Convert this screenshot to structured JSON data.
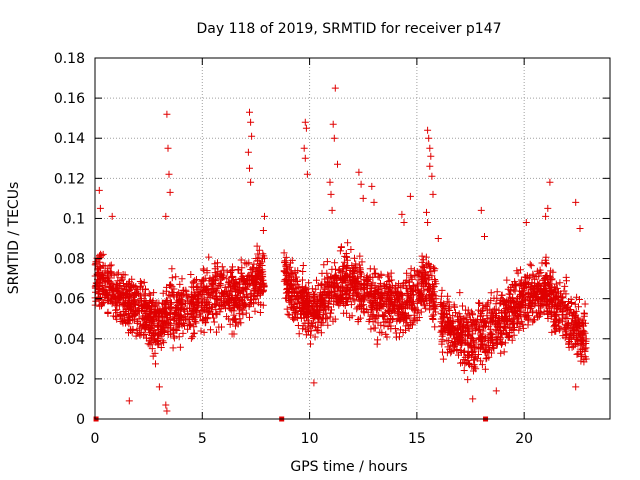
{
  "chart_data": {
    "type": "scatter",
    "title": "Day 118 of 2019, SRMTID for receiver p147",
    "xlabel": "GPS time / hours",
    "ylabel": "SRMTID / TECUs",
    "xlim": [
      0,
      24
    ],
    "ylim": [
      0,
      0.18
    ],
    "xticks": [
      0,
      5,
      10,
      15,
      20
    ],
    "xtick_labels": [
      "0",
      "5",
      "10",
      "15",
      "20"
    ],
    "yticks": [
      0,
      0.02,
      0.04,
      0.06,
      0.08,
      0.1,
      0.12,
      0.14,
      0.16,
      0.18
    ],
    "ytick_labels": [
      "0",
      "0.02",
      "0.04",
      "0.06",
      "0.08",
      "0.1",
      "0.12",
      "0.14",
      "0.16",
      "0.18"
    ],
    "grid": true,
    "marker": "+",
    "color": "#e00000",
    "gap_markers_x": [
      0.05,
      8.7,
      18.2
    ],
    "segments": [
      {
        "start": 0.0,
        "end": 7.9
      },
      {
        "start": 8.8,
        "end": 15.9
      },
      {
        "start": 16.1,
        "end": 22.9
      }
    ],
    "trend": [
      {
        "x": 0.0,
        "y": 0.068
      },
      {
        "x": 1.0,
        "y": 0.063
      },
      {
        "x": 2.0,
        "y": 0.055
      },
      {
        "x": 3.0,
        "y": 0.047
      },
      {
        "x": 3.4,
        "y": 0.055
      },
      {
        "x": 4.5,
        "y": 0.055
      },
      {
        "x": 5.5,
        "y": 0.063
      },
      {
        "x": 6.5,
        "y": 0.06
      },
      {
        "x": 7.5,
        "y": 0.07
      },
      {
        "x": 8.8,
        "y": 0.07
      },
      {
        "x": 10.0,
        "y": 0.053
      },
      {
        "x": 11.5,
        "y": 0.07
      },
      {
        "x": 13.0,
        "y": 0.06
      },
      {
        "x": 14.5,
        "y": 0.055
      },
      {
        "x": 15.5,
        "y": 0.07
      },
      {
        "x": 16.2,
        "y": 0.05
      },
      {
        "x": 17.5,
        "y": 0.038
      },
      {
        "x": 18.5,
        "y": 0.045
      },
      {
        "x": 19.5,
        "y": 0.055
      },
      {
        "x": 21.0,
        "y": 0.065
      },
      {
        "x": 22.0,
        "y": 0.05
      },
      {
        "x": 22.9,
        "y": 0.04
      }
    ],
    "spikes": [
      {
        "x": 0.2,
        "y": 0.114
      },
      {
        "x": 0.25,
        "y": 0.105
      },
      {
        "x": 0.8,
        "y": 0.101
      },
      {
        "x": 3.35,
        "y": 0.152
      },
      {
        "x": 3.4,
        "y": 0.135
      },
      {
        "x": 3.45,
        "y": 0.122
      },
      {
        "x": 3.5,
        "y": 0.113
      },
      {
        "x": 3.3,
        "y": 0.101
      },
      {
        "x": 7.2,
        "y": 0.153
      },
      {
        "x": 7.25,
        "y": 0.148
      },
      {
        "x": 7.3,
        "y": 0.141
      },
      {
        "x": 7.15,
        "y": 0.133
      },
      {
        "x": 7.2,
        "y": 0.125
      },
      {
        "x": 7.25,
        "y": 0.118
      },
      {
        "x": 7.9,
        "y": 0.101
      },
      {
        "x": 7.85,
        "y": 0.094
      },
      {
        "x": 9.8,
        "y": 0.148
      },
      {
        "x": 9.85,
        "y": 0.145
      },
      {
        "x": 9.75,
        "y": 0.135
      },
      {
        "x": 9.8,
        "y": 0.13
      },
      {
        "x": 9.9,
        "y": 0.122
      },
      {
        "x": 11.2,
        "y": 0.165
      },
      {
        "x": 11.1,
        "y": 0.147
      },
      {
        "x": 11.15,
        "y": 0.14
      },
      {
        "x": 11.3,
        "y": 0.127
      },
      {
        "x": 11.0,
        "y": 0.112
      },
      {
        "x": 11.05,
        "y": 0.104
      },
      {
        "x": 10.95,
        "y": 0.118
      },
      {
        "x": 12.3,
        "y": 0.123
      },
      {
        "x": 12.4,
        "y": 0.117
      },
      {
        "x": 12.9,
        "y": 0.116
      },
      {
        "x": 12.5,
        "y": 0.11
      },
      {
        "x": 13.0,
        "y": 0.108
      },
      {
        "x": 14.7,
        "y": 0.111
      },
      {
        "x": 14.3,
        "y": 0.102
      },
      {
        "x": 14.4,
        "y": 0.098
      },
      {
        "x": 15.5,
        "y": 0.144
      },
      {
        "x": 15.55,
        "y": 0.14
      },
      {
        "x": 15.6,
        "y": 0.135
      },
      {
        "x": 15.65,
        "y": 0.131
      },
      {
        "x": 15.6,
        "y": 0.126
      },
      {
        "x": 15.7,
        "y": 0.121
      },
      {
        "x": 15.75,
        "y": 0.112
      },
      {
        "x": 15.45,
        "y": 0.103
      },
      {
        "x": 15.5,
        "y": 0.098
      },
      {
        "x": 16.0,
        "y": 0.09
      },
      {
        "x": 17.0,
        "y": 0.063
      },
      {
        "x": 18.0,
        "y": 0.104
      },
      {
        "x": 18.15,
        "y": 0.091
      },
      {
        "x": 17.6,
        "y": 0.01
      },
      {
        "x": 18.7,
        "y": 0.014
      },
      {
        "x": 21.2,
        "y": 0.118
      },
      {
        "x": 21.1,
        "y": 0.105
      },
      {
        "x": 21.0,
        "y": 0.101
      },
      {
        "x": 22.4,
        "y": 0.108
      },
      {
        "x": 22.6,
        "y": 0.095
      },
      {
        "x": 20.1,
        "y": 0.098
      },
      {
        "x": 1.6,
        "y": 0.009
      },
      {
        "x": 3.3,
        "y": 0.007
      },
      {
        "x": 3.35,
        "y": 0.004
      },
      {
        "x": 22.4,
        "y": 0.016
      },
      {
        "x": 10.2,
        "y": 0.018
      },
      {
        "x": 3.0,
        "y": 0.016
      }
    ]
  }
}
